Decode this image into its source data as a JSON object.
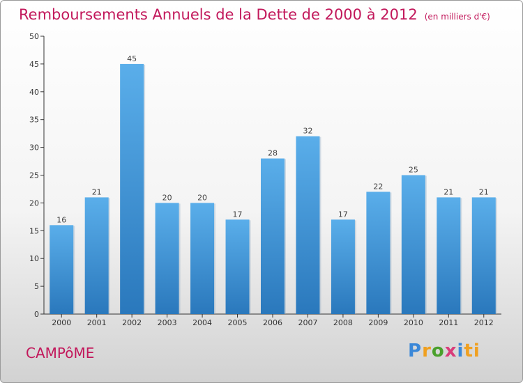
{
  "title": "Remboursements Annuels de la Dette de 2000 à 2012",
  "unit": "(en milliers d'€)",
  "commune": "CAMPôME",
  "logo": {
    "text": "Proxiti",
    "letters": [
      "P",
      "r",
      "o",
      "x",
      "i",
      "ti"
    ]
  },
  "colors": {
    "bar_top": "#5aaeea",
    "bar_bottom": "#2a78bc",
    "title": "#c2185b"
  },
  "chart_data": {
    "type": "bar",
    "title": "Remboursements Annuels de la Dette de 2000 à 2012",
    "xlabel": "",
    "ylabel": "",
    "categories": [
      "2000",
      "2001",
      "2002",
      "2003",
      "2004",
      "2005",
      "2006",
      "2007",
      "2008",
      "2009",
      "2010",
      "2011",
      "2012"
    ],
    "values": [
      16,
      21,
      45,
      20,
      20,
      17,
      28,
      32,
      17,
      22,
      25,
      21,
      21
    ],
    "ylim": [
      0,
      50
    ],
    "yticks": [
      0,
      5,
      10,
      15,
      20,
      25,
      30,
      35,
      40,
      45,
      50
    ],
    "grid": false,
    "data_labels": true
  }
}
